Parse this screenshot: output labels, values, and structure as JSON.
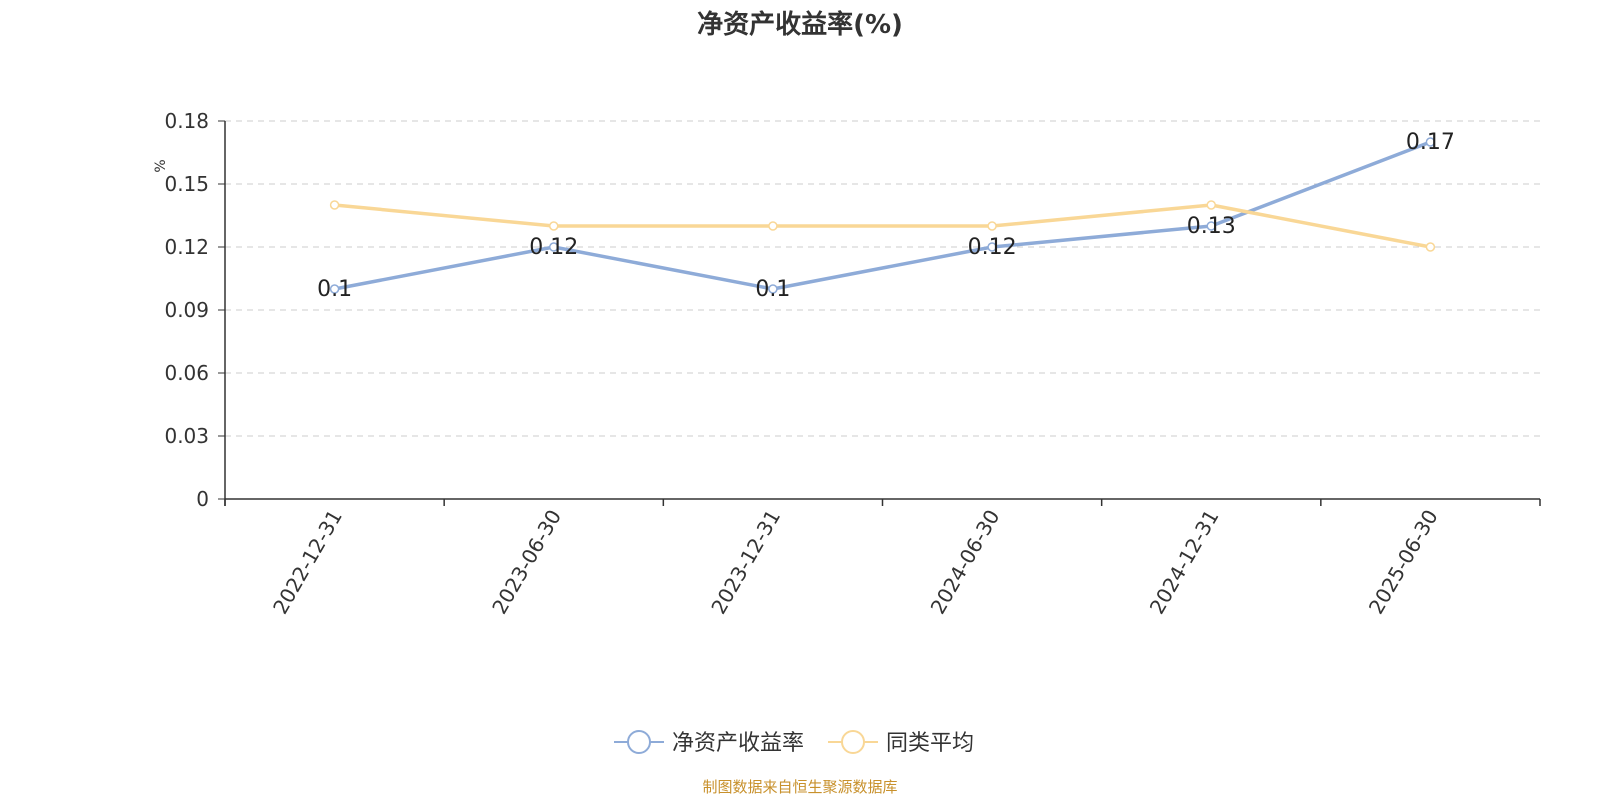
{
  "chart_data": {
    "type": "line",
    "title": "净资产收益率(%)",
    "ylabel": "%",
    "xlabel": "",
    "categories": [
      "2022-12-31",
      "2023-06-30",
      "2023-12-31",
      "2024-06-30",
      "2024-12-31",
      "2025-06-30"
    ],
    "ylim": [
      0,
      0.18
    ],
    "yticks": [
      "0",
      "0.03",
      "0.06",
      "0.09",
      "0.12",
      "0.15",
      "0.18"
    ],
    "grid": true,
    "legend_position": "bottom-center",
    "series": [
      {
        "name": "净资产收益率",
        "color": "#8eabd8",
        "values": [
          0.1,
          0.12,
          0.1,
          0.12,
          0.13,
          0.17
        ],
        "labels": [
          "0.1",
          "0.12",
          "0.1",
          "0.12",
          "0.13",
          "0.17"
        ]
      },
      {
        "name": "同类平均",
        "color": "#f9d796",
        "values": [
          0.14,
          0.13,
          0.13,
          0.13,
          0.14,
          0.12
        ]
      }
    ]
  },
  "source_note": "制图数据来自恒生聚源数据库",
  "colors": {
    "axis": "#333333",
    "grid": "#cccccc",
    "unit_label": "#ff0000",
    "source": "#c8912c"
  }
}
